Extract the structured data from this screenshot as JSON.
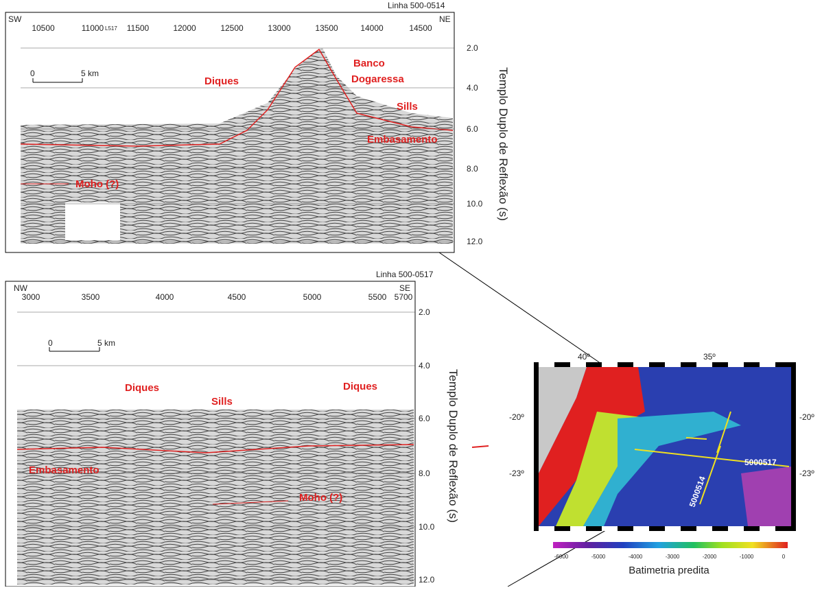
{
  "top_panel": {
    "line_label": "Linha 500-0514",
    "left_dir": "SW",
    "right_dir": "NE",
    "x_ticks": [
      "10500",
      "11000",
      "11500",
      "12000",
      "12500",
      "13000",
      "13500",
      "14000",
      "14500"
    ],
    "x_marker": "L517",
    "scale": {
      "start": "0",
      "end": "5 km"
    },
    "y_ticks": [
      "2.0",
      "4.0",
      "6.0",
      "8.0",
      "10.0",
      "12.0"
    ],
    "y_label": "Templo Duplo de Reflexão (s)",
    "annotations": {
      "diques": "Diques",
      "banco": "Banco",
      "dogaressa": "Dogaressa",
      "sills": "Sills",
      "embasamento": "Embasamento",
      "moho": "Moho (?)"
    }
  },
  "bottom_panel": {
    "line_label": "Linha 500-0517",
    "left_dir": "NW",
    "right_dir": "SE",
    "x_ticks": [
      "3000",
      "3500",
      "4000",
      "4500",
      "5000",
      "5500",
      "5700"
    ],
    "scale": {
      "start": "0",
      "end": "5 km"
    },
    "y_ticks": [
      "2.0",
      "4.0",
      "6.0",
      "8.0",
      "10.0",
      "12.0"
    ],
    "y_label": "Templo Duplo de Reflexão (s)",
    "annotations": {
      "diques_left": "Diques",
      "sills": "Sills",
      "diques_right": "Diques",
      "embasamento": "Embasamento",
      "moho": "Moho (?)"
    }
  },
  "map": {
    "lon_labels": [
      "40º",
      "35º"
    ],
    "lat_labels": [
      "-20º",
      "-23º"
    ],
    "line_labels": [
      "5000517",
      "5000514"
    ],
    "colorbar_ticks": [
      "-6000",
      "-5000",
      "-4000",
      "-3000",
      "-2000",
      "-1000",
      "0"
    ],
    "colorbar_title": "Batimetria predita"
  }
}
